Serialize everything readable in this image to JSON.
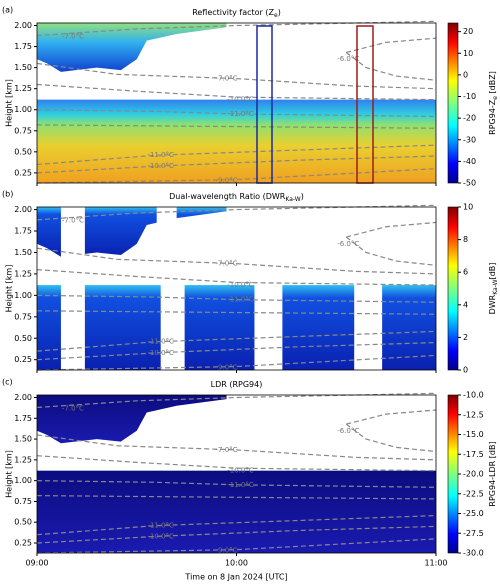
{
  "chart_data": [
    {
      "type": "heatmap",
      "panel_label": "(a)",
      "title": [
        "Reflectivity factor (Z",
        "e",
        ")"
      ],
      "ylabel": "Height [km]",
      "ylim": [
        0.13,
        2.03
      ],
      "yticks": [
        0.25,
        {
          "value": 0.5,
          "label": "0.50"
        },
        0.75,
        {
          "value": 1,
          "label": "1.00"
        },
        1.25,
        {
          "value": 1.5,
          "label": "1.50"
        },
        1.75,
        {
          "value": 2,
          "label": "2.00"
        }
      ],
      "xlim": [
        9,
        11
      ],
      "colorbar_label": [
        "RPG94-Z",
        "e",
        " [dBZ]"
      ],
      "clim": [
        -50,
        24
      ],
      "cticks": [
        -50,
        -40,
        -30,
        -20,
        -10,
        0,
        10,
        20
      ],
      "annotations": [
        "-7.0°C",
        "-6.0°C",
        "-7.0°C",
        "-10.0°C",
        "-11.0°C",
        "-11.0°C",
        "-10.0°C",
        "-9.0°C"
      ]
    },
    {
      "type": "heatmap",
      "panel_label": "(b)",
      "title": [
        "Dual-wavelength Ratio (DWR",
        "Ka-W",
        ")"
      ],
      "ylabel": "Height [km]",
      "ylim": [
        0.13,
        2.03
      ],
      "yticks": [
        0.25,
        {
          "value": 0.5,
          "label": "0.50"
        },
        0.75,
        {
          "value": 1,
          "label": "1.00"
        },
        1.25,
        {
          "value": 1.5,
          "label": "1.50"
        },
        1.75,
        {
          "value": 2,
          "label": "2.00"
        }
      ],
      "xlim": [
        9,
        11
      ],
      "colorbar_label": [
        "DWR",
        "Ka-W",
        "[dB]"
      ],
      "clim": [
        0,
        10
      ],
      "cticks": [
        0,
        2,
        4,
        6,
        8,
        10
      ],
      "annotations": [
        "-7.0°C",
        "-6.0°C",
        "-7.0°C",
        "-10.0°C",
        "-11.0°C",
        "-11.0°C",
        "-10.0°C",
        "-9.0°C"
      ]
    },
    {
      "type": "heatmap",
      "panel_label": "(c)",
      "title": [
        "LDR (RPG94)"
      ],
      "ylabel": "Height [km]",
      "ylim": [
        0.13,
        2.03
      ],
      "yticks": [
        0.25,
        {
          "value": 0.5,
          "label": "0.50"
        },
        0.75,
        {
          "value": 1,
          "label": "1.00"
        },
        1.25,
        {
          "value": 1.5,
          "label": "1.50"
        },
        1.75,
        {
          "value": 2,
          "label": "2.00"
        }
      ],
      "xlim": [
        9,
        11
      ],
      "xticks": [
        {
          "value": 9,
          "label": "09:00"
        },
        {
          "value": 10,
          "label": "10:00"
        },
        {
          "value": 11,
          "label": "11:00"
        }
      ],
      "xlabel": "Time on 8 Jan 2024 [UTC]",
      "colorbar_label": [
        "RPG94-LDR [dB]"
      ],
      "clim": [
        -30,
        -10
      ],
      "cticks": [
        {
          "value": -30,
          "label": "-30.0"
        },
        -27.5,
        {
          "value": -25,
          "label": "-25.0"
        },
        -22.5,
        {
          "value": -20,
          "label": "-20.0"
        },
        -17.5,
        {
          "value": -15,
          "label": "-15.0"
        },
        -12.5,
        {
          "value": -10,
          "label": "-10.0"
        }
      ],
      "annotations": [
        "-7.0°C",
        "-6.0°C",
        "-7.0°C",
        "-10.0°C",
        "-11.0°C",
        "-11.0°C",
        "-10.0°C",
        "-9.0°C"
      ]
    }
  ]
}
